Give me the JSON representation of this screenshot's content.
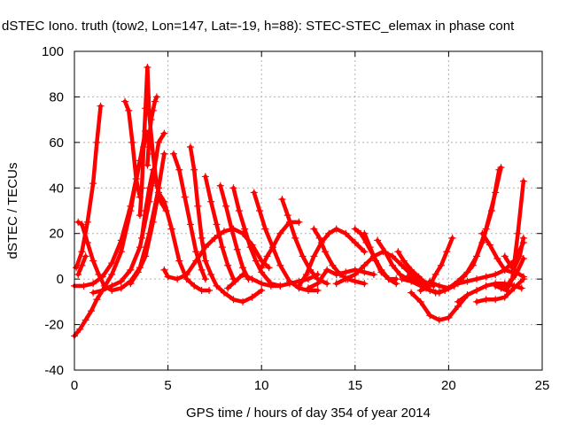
{
  "chart_data": {
    "type": "scatter",
    "title": "dSTEC Iono. truth (tow2, Lon=147, Lat=-19, h=88): STEC-STEC_elemax in phase cont",
    "xlabel": "GPS time / hours of day 354 of year 2014",
    "ylabel": "dSTEC  / TECUs",
    "xlim": [
      0,
      25
    ],
    "ylim": [
      -40,
      100
    ],
    "x_ticks": [
      0,
      5,
      10,
      15,
      20,
      25
    ],
    "y_ticks": [
      -40,
      -20,
      0,
      20,
      40,
      60,
      80,
      100
    ],
    "grid": true,
    "marker": "+",
    "colors": {
      "series": "#ff0000",
      "grid": "#b0b0b0",
      "axes": "#000000"
    },
    "series": [
      {
        "name": "arc1",
        "x": [
          0.0,
          0.3,
          0.6,
          0.9,
          1.2,
          1.5,
          2.0,
          2.5,
          3.0,
          3.5,
          3.9
        ],
        "y": [
          -25,
          -22,
          -18,
          -14,
          -9,
          -5,
          2,
          12,
          30,
          52,
          64
        ]
      },
      {
        "name": "arc2",
        "x": [
          0.0,
          0.5,
          1.0,
          1.5,
          2.0,
          2.5,
          3.0,
          3.5,
          3.8
        ],
        "y": [
          -3,
          -3,
          -2,
          1,
          7,
          17,
          32,
          52,
          65
        ]
      },
      {
        "name": "arc3",
        "x": [
          0.2,
          0.4,
          0.7,
          1.0,
          1.3,
          1.6,
          2.0,
          2.5,
          3.0,
          3.5,
          4.0,
          4.5,
          4.8
        ],
        "y": [
          25,
          24,
          16,
          8,
          2,
          -3,
          -5,
          -4,
          -1,
          5,
          20,
          40,
          55
        ]
      },
      {
        "name": "arc4",
        "x": [
          0.1,
          0.4,
          0.7,
          1.0,
          1.2,
          1.4
        ],
        "y": [
          5,
          12,
          25,
          42,
          60,
          76
        ]
      },
      {
        "name": "arc5",
        "x": [
          0.2,
          0.4,
          0.6
        ],
        "y": [
          2,
          6,
          10
        ]
      },
      {
        "name": "arc6",
        "x": [
          1.0,
          1.5,
          2.0,
          2.5,
          3.0,
          3.5,
          4.0,
          4.5,
          4.8
        ],
        "y": [
          -6,
          -5,
          -3,
          -1,
          4,
          14,
          34,
          60,
          64
        ]
      },
      {
        "name": "arc7",
        "x": [
          2.7,
          2.9,
          3.1,
          3.3,
          3.5
        ],
        "y": [
          78,
          74,
          60,
          44,
          36
        ]
      },
      {
        "name": "arc8",
        "x": [
          3.5,
          3.6,
          3.7,
          3.8,
          3.9,
          4.0,
          4.2,
          4.4
        ],
        "y": [
          28,
          40,
          58,
          75,
          93,
          72,
          55,
          41
        ]
      },
      {
        "name": "arc9",
        "x": [
          3.9,
          4.0,
          4.1,
          4.2,
          4.3,
          4.4
        ],
        "y": [
          50,
          62,
          70,
          74,
          78,
          80
        ]
      },
      {
        "name": "arc10",
        "x": [
          3.6,
          3.8,
          4.0,
          4.2,
          4.4,
          4.6,
          4.9
        ],
        "y": [
          18,
          30,
          40,
          48,
          42,
          34,
          30
        ]
      },
      {
        "name": "arc11",
        "x": [
          3.0,
          3.4,
          3.8,
          4.2,
          4.5,
          4.8,
          5.2,
          5.6,
          6.0,
          6.4,
          6.8,
          7.2
        ],
        "y": [
          -2,
          3,
          10,
          25,
          38,
          34,
          22,
          8,
          0,
          -3,
          -5,
          -5
        ]
      },
      {
        "name": "arc12",
        "x": [
          4.8,
          5.0,
          5.5,
          6.0,
          6.5,
          7.0,
          7.5,
          8.0,
          8.5,
          9.0,
          9.5,
          10.0,
          10.4
        ],
        "y": [
          4,
          1,
          0,
          2,
          8,
          14,
          18,
          21,
          22,
          20,
          15,
          8,
          5
        ]
      },
      {
        "name": "arc13",
        "x": [
          5.3,
          5.6,
          5.9,
          6.2,
          6.5,
          6.8,
          7.0
        ],
        "y": [
          55,
          48,
          36,
          24,
          12,
          4,
          0
        ]
      },
      {
        "name": "arc14",
        "x": [
          6.2,
          6.4,
          6.6,
          6.8,
          7.0,
          7.3,
          7.6,
          8.0,
          8.5,
          9.0,
          9.5,
          10.0
        ],
        "y": [
          58,
          48,
          32,
          18,
          8,
          2,
          -3,
          -6,
          -9,
          -10,
          -8,
          -5
        ]
      },
      {
        "name": "arc15",
        "x": [
          7.0,
          7.3,
          7.6,
          7.9,
          8.2,
          8.5
        ],
        "y": [
          45,
          34,
          24,
          14,
          6,
          0
        ]
      },
      {
        "name": "arc16",
        "x": [
          7.8,
          8.1,
          8.4,
          8.7,
          9.0,
          9.3
        ],
        "y": [
          41,
          32,
          22,
          13,
          5,
          0
        ]
      },
      {
        "name": "arc17",
        "x": [
          8.5,
          8.8,
          9.1,
          9.4,
          9.7,
          10.0,
          10.5,
          11.0
        ],
        "y": [
          40,
          30,
          22,
          14,
          8,
          3,
          -2,
          -3
        ]
      },
      {
        "name": "arc18",
        "x": [
          9.6,
          9.9,
          10.2,
          10.6,
          11.0,
          11.5,
          12.0,
          12.5,
          13.0
        ],
        "y": [
          38,
          30,
          22,
          14,
          6,
          -1,
          -4,
          -5,
          -5
        ]
      },
      {
        "name": "arc19",
        "x": [
          11.1,
          11.4,
          11.8,
          12.2,
          12.6,
          13.0,
          13.5
        ],
        "y": [
          35,
          28,
          18,
          10,
          4,
          0,
          -2
        ]
      },
      {
        "name": "arc20",
        "x": [
          10.0,
          10.3,
          10.6,
          11.0,
          11.5,
          12.0
        ],
        "y": [
          5,
          10,
          14,
          20,
          25,
          25
        ]
      },
      {
        "name": "arc21",
        "x": [
          12.8,
          13.1,
          13.4,
          13.8,
          14.2,
          14.6,
          15.0,
          15.5
        ],
        "y": [
          22,
          18,
          12,
          6,
          2,
          0,
          -1,
          -2
        ]
      },
      {
        "name": "arc22",
        "x": [
          8.2,
          8.6,
          9.0,
          9.5,
          10.0,
          10.5,
          11.0,
          11.5,
          12.0,
          12.5,
          13.0
        ],
        "y": [
          -4,
          -1,
          2,
          0,
          -2,
          -3,
          -3,
          -2,
          -1,
          0,
          2
        ]
      },
      {
        "name": "arc23",
        "x": [
          12.0,
          12.4,
          12.8,
          13.2,
          13.6,
          14.0,
          14.5,
          15.0,
          15.5
        ],
        "y": [
          -3,
          2,
          10,
          16,
          20,
          22,
          20,
          16,
          12
        ]
      },
      {
        "name": "arc24",
        "x": [
          12.5,
          13.0,
          13.5,
          14.0,
          14.5,
          15.0,
          15.5,
          16.0
        ],
        "y": [
          -4,
          -2,
          4,
          2,
          3,
          4,
          3,
          2
        ]
      },
      {
        "name": "arc25",
        "x": [
          15.0,
          15.3,
          15.6,
          16.0,
          16.4,
          16.8,
          17.2
        ],
        "y": [
          22,
          20,
          16,
          10,
          4,
          0,
          -2
        ]
      },
      {
        "name": "arc26",
        "x": [
          15.5,
          15.8,
          16.1,
          16.4,
          16.8,
          17.2
        ],
        "y": [
          20,
          14,
          8,
          3,
          0,
          0
        ]
      },
      {
        "name": "arc27",
        "x": [
          14.0,
          14.5,
          15.0,
          15.5,
          16.0,
          16.5,
          17.0,
          17.5,
          18.0,
          18.5
        ],
        "y": [
          -2,
          0,
          2,
          6,
          10,
          12,
          10,
          6,
          2,
          0
        ]
      },
      {
        "name": "arc28",
        "x": [
          16.2,
          16.6,
          17.0,
          17.4,
          17.8,
          18.2,
          18.6,
          19.0
        ],
        "y": [
          17,
          12,
          6,
          2,
          0,
          -1,
          -2,
          -3
        ]
      },
      {
        "name": "arc29",
        "x": [
          17.3,
          17.6,
          18.0,
          18.4,
          18.8,
          19.2
        ],
        "y": [
          12,
          8,
          4,
          1,
          -2,
          -3
        ]
      },
      {
        "name": "arc30",
        "x": [
          17.5,
          18.0,
          18.5,
          19.0,
          19.5,
          20.0,
          20.5,
          21.0,
          21.5,
          22.0,
          22.5,
          22.8
        ],
        "y": [
          0,
          -1,
          -3,
          -5,
          -6,
          -4,
          -1,
          3,
          10,
          22,
          38,
          49
        ]
      },
      {
        "name": "arc31",
        "x": [
          17.8,
          18.3,
          18.8,
          19.3,
          19.8,
          20.3,
          20.8,
          21.3,
          21.8,
          22.3,
          22.7
        ],
        "y": [
          1,
          -1,
          -4,
          -6,
          -5,
          -3,
          1,
          6,
          16,
          30,
          48
        ]
      },
      {
        "name": "arc32",
        "x": [
          18.5,
          18.8,
          19.0,
          19.3,
          19.6,
          19.9,
          20.2
        ],
        "y": [
          -5,
          -4,
          -3,
          2,
          6,
          12,
          18
        ]
      },
      {
        "name": "arc33",
        "x": [
          18.0,
          18.5,
          19.0,
          19.5,
          20.0,
          20.5,
          21.0
        ],
        "y": [
          -6,
          -10,
          -16,
          -18,
          -17,
          -12,
          -7
        ]
      },
      {
        "name": "arc34",
        "x": [
          19.0,
          19.2,
          19.5,
          20.0,
          20.5,
          21.0,
          21.5,
          22.0,
          22.5,
          23.0,
          23.5,
          24.0
        ],
        "y": [
          -1,
          -2,
          -3,
          -4,
          -2,
          -1,
          0,
          1,
          2,
          4,
          8,
          16
        ]
      },
      {
        "name": "arc35",
        "x": [
          20.5,
          21.0,
          21.5,
          22.0,
          22.5,
          23.0,
          23.5,
          23.9
        ],
        "y": [
          -10,
          -7,
          -5,
          -3,
          -2,
          -2,
          -3,
          -4
        ]
      },
      {
        "name": "arc36",
        "x": [
          21.5,
          22.0,
          22.5,
          23.0,
          23.5,
          24.0
        ],
        "y": [
          -10,
          -9,
          -9,
          -8,
          -4,
          0
        ]
      },
      {
        "name": "arc37",
        "x": [
          21.8,
          22.2,
          22.6,
          23.0,
          23.4,
          23.8,
          24.0
        ],
        "y": [
          20,
          15,
          9,
          4,
          3,
          10,
          18
        ]
      },
      {
        "name": "arc38",
        "x": [
          22.5,
          22.8,
          23.1,
          23.4,
          23.7,
          24.0
        ],
        "y": [
          -3,
          -4,
          -5,
          0,
          20,
          43
        ]
      },
      {
        "name": "arc39",
        "x": [
          22.8,
          23.2,
          23.6,
          24.0
        ],
        "y": [
          -4,
          -2,
          2,
          9
        ]
      },
      {
        "name": "arc40",
        "x": [
          23.0,
          23.3,
          23.6,
          24.0
        ],
        "y": [
          10,
          6,
          3,
          1
        ]
      }
    ]
  }
}
